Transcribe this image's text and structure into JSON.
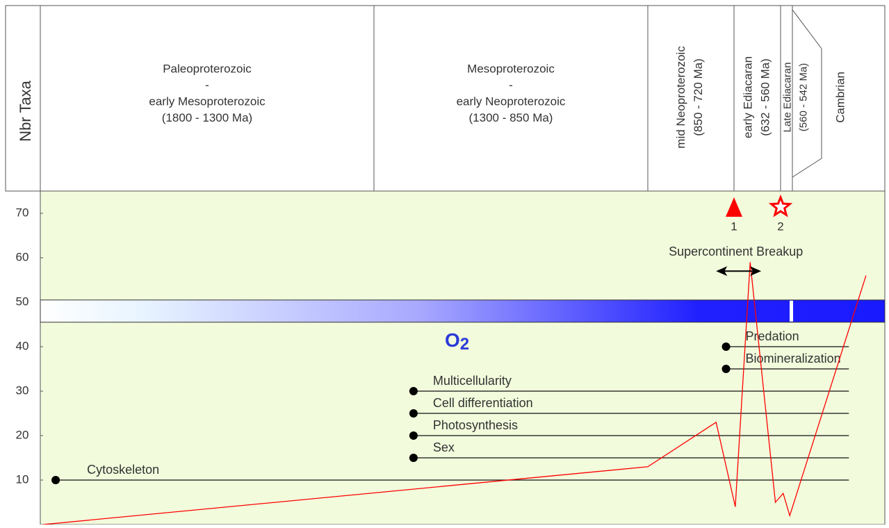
{
  "y_axis": {
    "label": "Nbr Taxa",
    "ylim": [
      0,
      75
    ],
    "yticks": [
      10,
      20,
      30,
      40,
      50,
      60,
      70
    ]
  },
  "xlim": [
    1800,
    488
  ],
  "columns": [
    {
      "lines": [
        "Paleoproterozoic",
        "-",
        "early Mesoproterozoic",
        "(1800 - 1300 Ma)"
      ],
      "range": [
        1800,
        1300
      ]
    },
    {
      "lines": [
        "Mesoproterozoic",
        "-",
        "early Neoproterozoic",
        "(1300 - 850 Ma)"
      ],
      "range": [
        1300,
        850
      ]
    },
    {
      "lines": [
        "mid Neoproterozoic",
        "(850 - 720 Ma)"
      ],
      "range": [
        850,
        720
      ]
    },
    {
      "lines": [
        "early Ediacaran",
        "(632 - 560 Ma)"
      ],
      "range": [
        632,
        560
      ]
    },
    {
      "lines": [
        "Late Ediacaran",
        "(560 - 542 Ma)"
      ],
      "range": [
        560,
        542
      ]
    },
    {
      "lines": [
        "Cambrian"
      ]
    }
  ],
  "oxygen": {
    "label": "O",
    "subscript": "2",
    "range": [
      45.5,
      50.5
    ]
  },
  "innovations": [
    {
      "name": "Cytoskeleton",
      "start": 1777,
      "end": 509,
      "value": 10
    },
    {
      "name": "Sex",
      "start": 1235,
      "end": 509,
      "value": 15
    },
    {
      "name": "Photosynthesis",
      "start": 1235,
      "end": 509,
      "value": 20
    },
    {
      "name": "Cell differentiation",
      "start": 1235,
      "end": 509,
      "value": 25
    },
    {
      "name": "Multicellularity",
      "start": 1235,
      "end": 509,
      "value": 30
    },
    {
      "name": "Biomineralization",
      "start": 732,
      "end": 509,
      "value": 35
    },
    {
      "name": "Predation",
      "start": 732,
      "end": 509,
      "value": 40
    }
  ],
  "events": [
    {
      "label": "1",
      "x": 632,
      "shape": "triangle",
      "color": "#ff0000"
    },
    {
      "label": "2",
      "x": 560,
      "shape": "star",
      "color": "#ff0000"
    }
  ],
  "breakup": {
    "label": "Supercontinent Breakup",
    "range": [
      747,
      590
    ],
    "value": 57
  },
  "taxa": {
    "color": "#ff0000",
    "x": [
      1796,
      850,
      747,
      630,
      607,
      568,
      556,
      546,
      499
    ],
    "values": [
      0,
      13,
      23,
      4,
      59,
      5,
      7,
      2,
      56
    ]
  }
}
